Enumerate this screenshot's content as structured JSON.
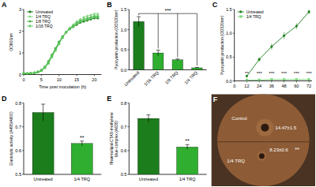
{
  "chart_data": [
    {
      "panel": "A",
      "type": "line",
      "x_label": "Time post inoculation (h)",
      "y_label": "OD600nm",
      "xlim": [
        0,
        22
      ],
      "ylim": [
        0,
        3
      ],
      "xticks": [
        0,
        5,
        10,
        15,
        20
      ],
      "yticks": [
        0,
        1,
        2,
        3
      ],
      "legend": "upper left",
      "x": [
        0,
        1,
        2,
        3,
        4,
        5,
        6,
        7,
        8,
        9,
        10,
        11,
        12,
        13,
        14,
        15,
        16,
        17,
        18,
        19,
        20,
        21
      ],
      "series": [
        {
          "name": "Untreated",
          "color": "#1b7d1b",
          "marker": "circle",
          "values": [
            0.05,
            0.05,
            0.06,
            0.08,
            0.12,
            0.2,
            0.35,
            0.6,
            0.9,
            1.2,
            1.5,
            1.75,
            1.95,
            2.1,
            2.2,
            2.3,
            2.4,
            2.45,
            2.5,
            2.55,
            2.6,
            2.6
          ]
        },
        {
          "name": "1/4 TRQ",
          "color": "#7fd67f",
          "marker": "triangle",
          "values": [
            0.05,
            0.05,
            0.06,
            0.08,
            0.11,
            0.18,
            0.3,
            0.5,
            0.8,
            1.1,
            1.4,
            1.7,
            1.95,
            2.15,
            2.3,
            2.45,
            2.55,
            2.65,
            2.7,
            2.75,
            2.8,
            2.8
          ]
        },
        {
          "name": "1/8 TRQ",
          "color": "#3fae3f",
          "marker": "triangle",
          "values": [
            0.05,
            0.05,
            0.06,
            0.08,
            0.12,
            0.19,
            0.33,
            0.55,
            0.85,
            1.15,
            1.45,
            1.72,
            1.95,
            2.12,
            2.25,
            2.38,
            2.48,
            2.55,
            2.6,
            2.65,
            2.7,
            2.7
          ]
        },
        {
          "name": "1/16 TRQ",
          "color": "#5cc85c",
          "marker": "diamond",
          "values": [
            0.05,
            0.05,
            0.06,
            0.08,
            0.12,
            0.2,
            0.34,
            0.58,
            0.88,
            1.18,
            1.48,
            1.74,
            1.95,
            2.1,
            2.22,
            2.34,
            2.44,
            2.5,
            2.55,
            2.6,
            2.65,
            2.65
          ]
        }
      ]
    },
    {
      "panel": "B",
      "type": "bar",
      "y_label": "Pyocyanin production (OD520nm)",
      "categories": [
        "Untreated",
        "1/16 TRQ",
        "1/8 TRQ",
        "1/4 TRQ"
      ],
      "values": [
        1.2,
        0.42,
        0.25,
        0.05
      ],
      "errors": [
        0.12,
        0.07,
        0.02,
        0.01
      ],
      "colors": [
        "#1b7d1b",
        "#2fae2f",
        "#2fae2f",
        "#2fae2f"
      ],
      "ylim": [
        0,
        1.5
      ],
      "yticks": [
        {
          "value": 0,
          "label": "0.0"
        },
        {
          "value": 0.5,
          "label": "0.5"
        },
        {
          "value": 1,
          "label": "1.0"
        },
        {
          "value": 1.5,
          "label": "1.5"
        }
      ],
      "significance": "***"
    },
    {
      "panel": "C",
      "type": "line",
      "y_label": "Pyocyanin production (OD520nm)",
      "xlim": [
        0,
        75
      ],
      "ylim": [
        0,
        1.5
      ],
      "xticks": [
        0,
        12,
        24,
        36,
        48,
        60,
        72
      ],
      "yticks": [
        {
          "value": 0,
          "label": "0.0"
        },
        {
          "value": 0.5,
          "label": "0.5"
        },
        {
          "value": 1,
          "label": "1.0"
        },
        {
          "value": 1.5,
          "label": "1.5"
        }
      ],
      "legend": "upper left",
      "x": [
        12,
        24,
        36,
        48,
        60,
        72
      ],
      "series": [
        {
          "name": "Untreated",
          "color": "#1b7d1b",
          "marker": "circle",
          "values": [
            0.1,
            0.45,
            0.72,
            0.95,
            1.15,
            1.45
          ],
          "errors": [
            0.02,
            0.05,
            0.06,
            0.07,
            0.06,
            0.05
          ]
        },
        {
          "name": "1/4 TRQ",
          "color": "#7fd67f",
          "marker": "square",
          "values": [
            0.02,
            0.02,
            0.03,
            0.03,
            0.03,
            0.03
          ]
        }
      ],
      "significance": [
        "**",
        "***",
        "***",
        "***",
        "***",
        "***"
      ]
    },
    {
      "panel": "D",
      "type": "bar",
      "y_label": "Elastolytic activity (A495/A600)",
      "categories": [
        "Untreated",
        "1/4 TRQ"
      ],
      "values": [
        0.76,
        0.63
      ],
      "errors": [
        0.035,
        0.01
      ],
      "colors": [
        "#1b7d1b",
        "#2fae2f"
      ],
      "ylim": [
        0.5,
        0.8
      ],
      "yticks": [
        0.5,
        0.6,
        0.7,
        0.8
      ],
      "significance": "**"
    },
    {
      "panel": "E",
      "type": "bar",
      "y_label": [
        "Rhamnolipid-CTAB-methylene",
        "blue complex (A635)"
      ],
      "categories": [
        "Untreated",
        "1/4 TRQ"
      ],
      "values": [
        0.735,
        0.615
      ],
      "errors": [
        0.015,
        0.01
      ],
      "colors": [
        "#1b7d1b",
        "#2fae2f"
      ],
      "ylim": [
        0.5,
        0.8
      ],
      "yticks": [
        0.5,
        0.6,
        0.7,
        0.8
      ],
      "significance": "**"
    }
  ],
  "plate": {
    "panel": "F",
    "labels": [
      "Control",
      "1/4 TRQ"
    ],
    "zone_labels": [
      "14.47±1.5",
      "8.23±0.6"
    ],
    "significance": "**"
  }
}
